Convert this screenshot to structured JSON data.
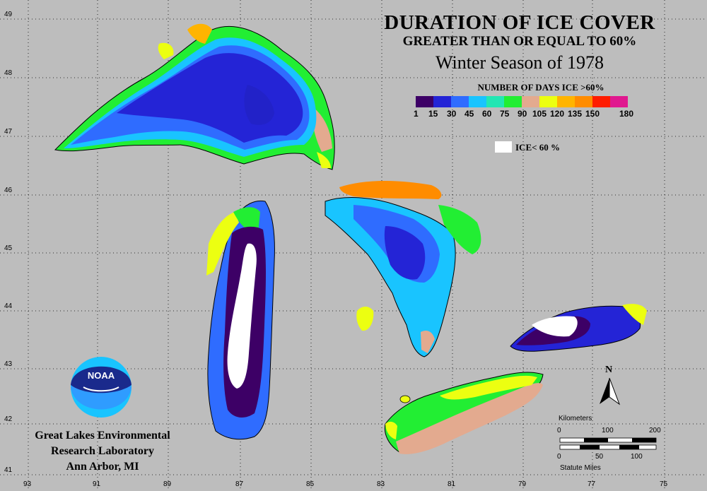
{
  "title": {
    "line1": "DURATION OF ICE COVER",
    "line2": "GREATER THAN OR EQUAL TO 60%",
    "line3": "Winter Season of 1978"
  },
  "legend": {
    "title": "NUMBER OF DAYS ICE >60%",
    "ticks": [
      "1",
      "15",
      "30",
      "45",
      "60",
      "75",
      "90",
      "105",
      "120",
      "135",
      "150",
      "180"
    ],
    "colors": [
      "#3d0066",
      "#2424d6",
      "#2f6cff",
      "#19c4ff",
      "#23e6b3",
      "#22ee33",
      "#e3aa8f",
      "#ecff11",
      "#ffb400",
      "#ff8c00",
      "#ff1c00",
      "#e0188f"
    ],
    "ice_label": "ICE< 60 %",
    "ice_color": "#ffffff"
  },
  "lat_labels": [
    "49",
    "48",
    "47",
    "46",
    "45",
    "44",
    "43",
    "42",
    "41"
  ],
  "lon_labels": [
    "93",
    "91",
    "89",
    "87",
    "85",
    "83",
    "81",
    "79",
    "77",
    "75"
  ],
  "org": {
    "line1": "Great Lakes Environmental",
    "line2": "Research Laboratory",
    "line3": "Ann Arbor, MI",
    "logo_text": "NOAA"
  },
  "north_label": "N",
  "scale": {
    "km_title": "Kilometers",
    "km_ticks": [
      "0",
      "100",
      "200"
    ],
    "mi_ticks": [
      "0",
      "50",
      "100"
    ],
    "mi_title": "Statute Miles"
  }
}
